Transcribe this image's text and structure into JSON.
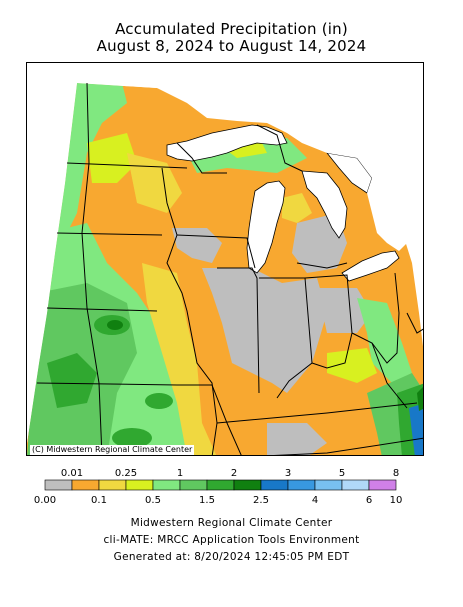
{
  "title_line1": "Accumulated Precipitation (in)",
  "title_line2": "August 8, 2024 to August 14, 2024",
  "copyright": "(C) Midwestern Regional Climate Center",
  "legend": {
    "unit": "in",
    "bins": [
      {
        "color": "#bebebe"
      },
      {
        "color": "#f8a830"
      },
      {
        "color": "#f0d840"
      },
      {
        "color": "#d8f020"
      },
      {
        "color": "#80e880"
      },
      {
        "color": "#60c860"
      },
      {
        "color": "#30a830"
      },
      {
        "color": "#108010"
      },
      {
        "color": "#1878c8"
      },
      {
        "color": "#3898e0"
      },
      {
        "color": "#78c0f0"
      },
      {
        "color": "#b0d8f8"
      },
      {
        "color": "#d080e8"
      }
    ],
    "labels_top": [
      "0.01",
      "0.25",
      "1",
      "2",
      "3",
      "5",
      "8"
    ],
    "labels_bottom": [
      "0.00",
      "0.1",
      "0.5",
      "1.5",
      "2.5",
      "4",
      "6",
      "10"
    ]
  },
  "footer": {
    "line1": "Midwestern Regional Climate Center",
    "line2": "cli-MATE: MRCC Application Tools Environment",
    "line3": "Generated at: 8/20/2024 12:45:05 PM EDT"
  },
  "colors": {
    "none": "#bebebe",
    "trace": "#f8a830",
    "light": "#f0d840",
    "yellowgreen": "#d8f020",
    "lightgreen": "#80e880",
    "green": "#60c860",
    "darkgreen": "#30a830",
    "deepgreen": "#108010",
    "blue": "#1878c8"
  }
}
